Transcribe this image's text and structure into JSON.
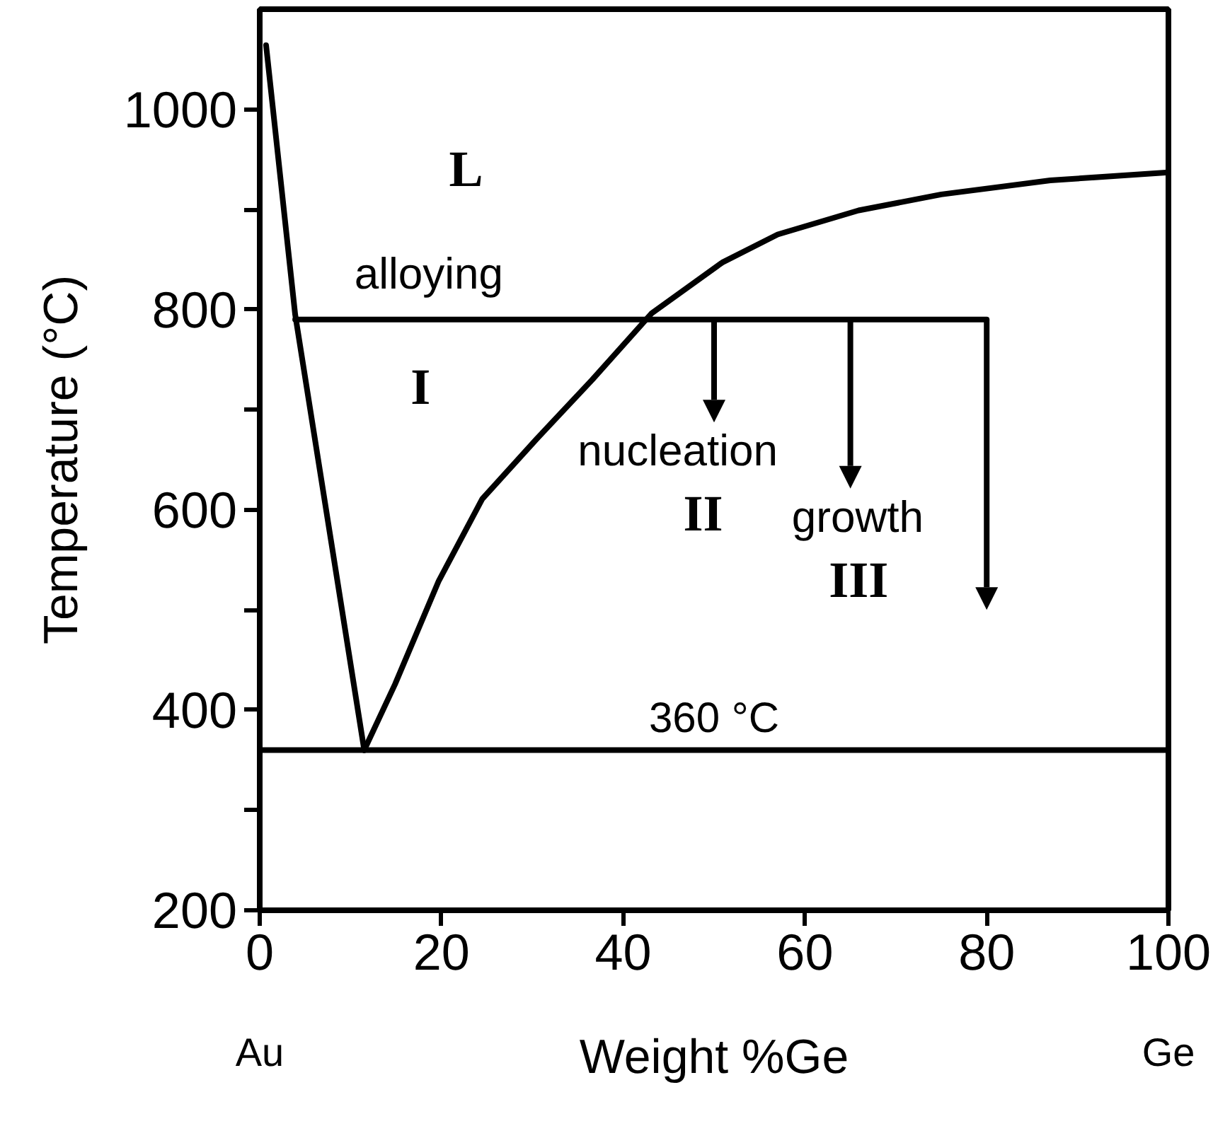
{
  "chart_data": {
    "type": "line",
    "xlabel": "Weight %Ge",
    "ylabel": "Temperature (°C)",
    "xlim": [
      0,
      100
    ],
    "ylim": [
      200,
      1100
    ],
    "xticks": [
      0,
      20,
      40,
      60,
      80,
      100
    ],
    "yticks": [
      200,
      {
        "value": 300,
        "label": null
      },
      400,
      {
        "value": 500,
        "label": null
      },
      600,
      {
        "value": 700,
        "label": null
      },
      800,
      {
        "value": 900,
        "label": null
      },
      1000
    ],
    "grid": false,
    "line_style": "solid",
    "series": [
      {
        "color": "#000000",
        "x": [
          0.7,
          3.9,
          11.5
        ],
        "values": [
          1064,
          795,
          360
        ]
      },
      {
        "color": "#000000",
        "x": [
          11.5,
          14.9,
          19.7,
          24.5,
          30.5,
          36.6,
          43.1,
          50.9,
          57,
          65.9,
          75,
          87,
          100
        ],
        "values": [
          360,
          426,
          529,
          611,
          671,
          730,
          796,
          847,
          875,
          899,
          915,
          929,
          937
        ]
      },
      {
        "color": "#000000",
        "x": [
          3.9,
          80
        ],
        "values": [
          790,
          790
        ]
      }
    ],
    "ref_lines": [
      {
        "axis": "y",
        "value": 360,
        "label": "360 °C",
        "color": "#000000"
      }
    ],
    "annotations": [
      "L",
      "alloying",
      "I",
      {
        "text": "nucleation",
        "x": 50,
        "y": 790
      },
      "II",
      {
        "text": "growth",
        "x": 65,
        "y": 790
      },
      "III",
      "Au",
      "Ge"
    ]
  }
}
